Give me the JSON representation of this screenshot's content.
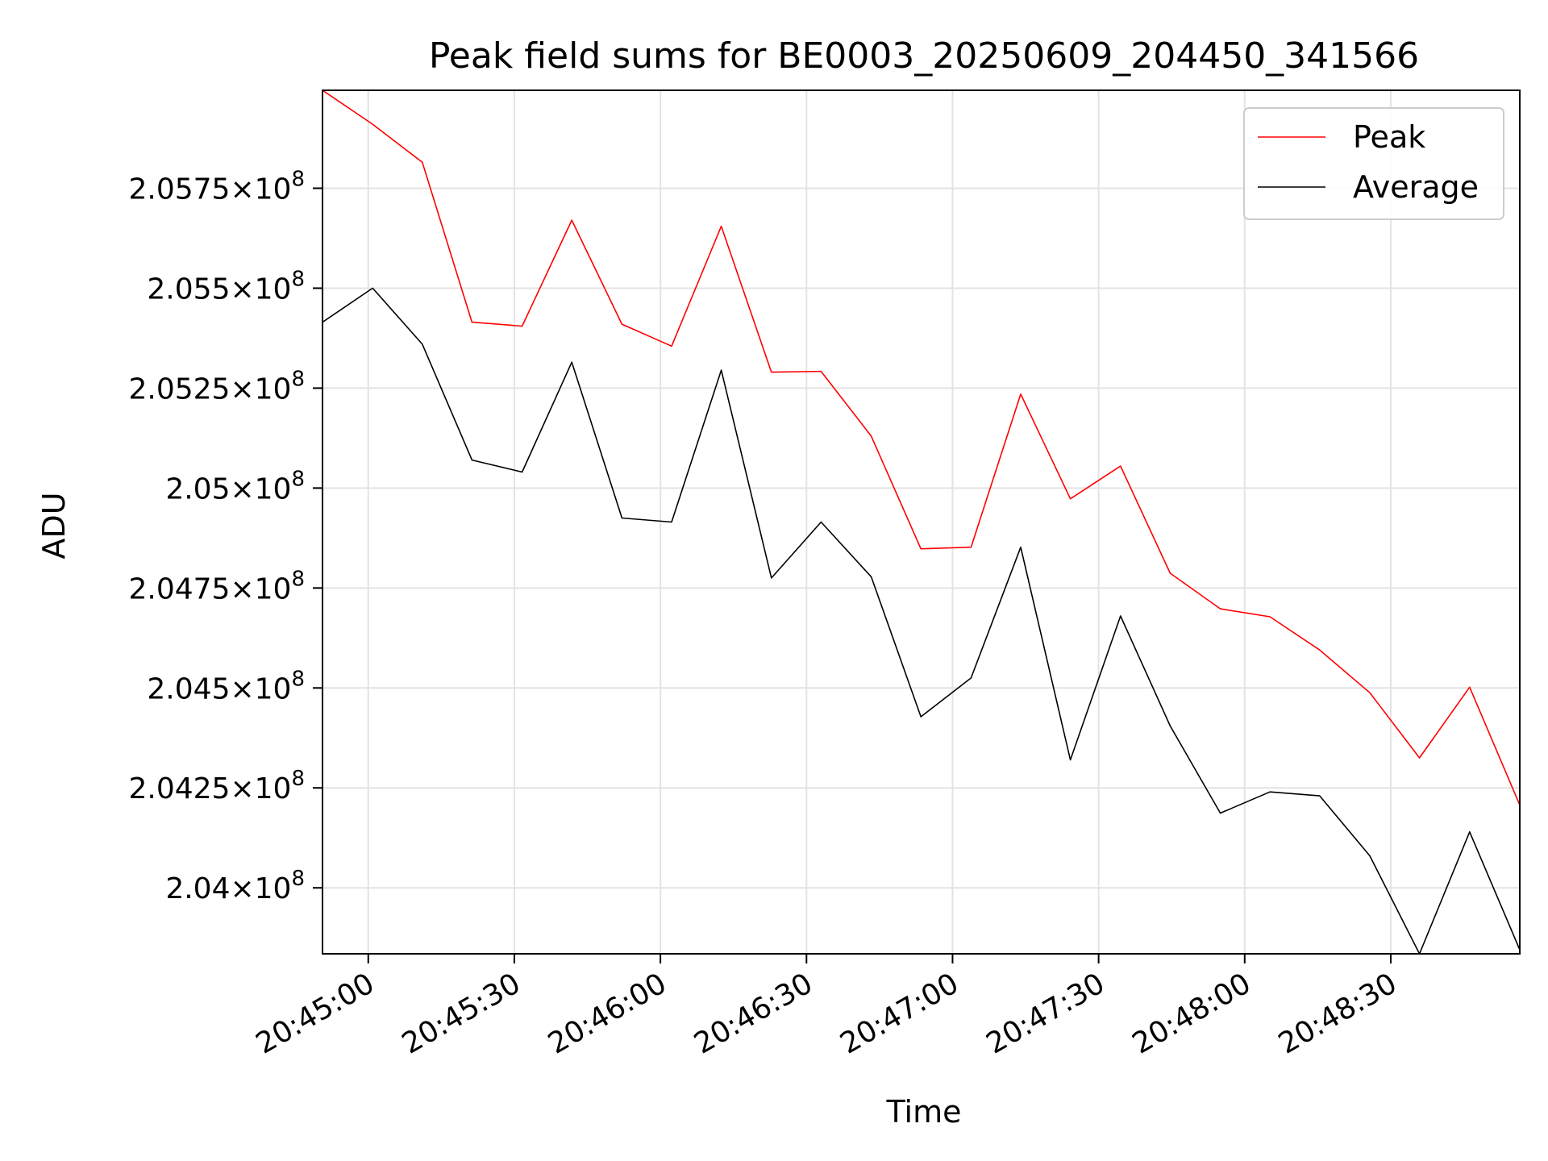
{
  "chart_data": {
    "type": "line",
    "title": "Peak field sums for BE0003_20250609_204450_341566",
    "xlabel": "Time",
    "ylabel": "ADU",
    "grid": true,
    "legend_position": "top-right",
    "x_tick_labels": [
      "20:45:00",
      "20:45:30",
      "20:46:00",
      "20:46:30",
      "20:47:00",
      "20:47:30",
      "20:48:00",
      "20:48:30"
    ],
    "y_ticks": [
      {
        "value": 204000000,
        "mantissa": "2.04",
        "exponent": "8"
      },
      {
        "value": 204250000,
        "mantissa": "2.0425",
        "exponent": "8"
      },
      {
        "value": 204500000,
        "mantissa": "2.045",
        "exponent": "8"
      },
      {
        "value": 204750000,
        "mantissa": "2.0475",
        "exponent": "8"
      },
      {
        "value": 205000000,
        "mantissa": "2.05",
        "exponent": "8"
      },
      {
        "value": 205250000,
        "mantissa": "2.0525",
        "exponent": "8"
      },
      {
        "value": 205500000,
        "mantissa": "2.055",
        "exponent": "8"
      },
      {
        "value": 205750000,
        "mantissa": "2.0575",
        "exponent": "8"
      }
    ],
    "x_range": [
      "20:44:50.6",
      "20:48:56.5"
    ],
    "ylim": [
      203835000,
      205995000
    ],
    "x": [
      "20:44:50.6",
      "20:45:00.9",
      "20:45:11.1",
      "20:45:21.3",
      "20:45:31.6",
      "20:45:41.8",
      "20:45:52.1",
      "20:46:02.3",
      "20:46:12.5",
      "20:46:22.8",
      "20:46:33.0",
      "20:46:43.3",
      "20:46:53.5",
      "20:47:03.8",
      "20:47:14.0",
      "20:47:24.2",
      "20:47:34.5",
      "20:47:44.7",
      "20:47:55.0",
      "20:48:05.2",
      "20:48:15.4",
      "20:48:25.7",
      "20:48:35.9",
      "20:48:46.2",
      "20:48:56.5"
    ],
    "series": [
      {
        "name": "Peak",
        "color": "#ff0000",
        "values": [
          205995000,
          205910000,
          205815000,
          205415000,
          205405000,
          205670000,
          205410000,
          205355000,
          205655000,
          205290000,
          205292000,
          205130000,
          204848000,
          204852000,
          205235000,
          204973000,
          205055000,
          204787000,
          204698000,
          204678000,
          204595000,
          204488000,
          204325000,
          204502000,
          204207000
        ]
      },
      {
        "name": "Average",
        "color": "#000000",
        "values": [
          205415000,
          205500000,
          205360000,
          205070000,
          205040000,
          205315000,
          204925000,
          204915000,
          205295000,
          204775000,
          204915000,
          204778000,
          204428000,
          204525000,
          204852000,
          204320000,
          204680000,
          204405000,
          204187000,
          204240000,
          204230000,
          204080000,
          203835000,
          204140000,
          203845000
        ]
      }
    ]
  }
}
